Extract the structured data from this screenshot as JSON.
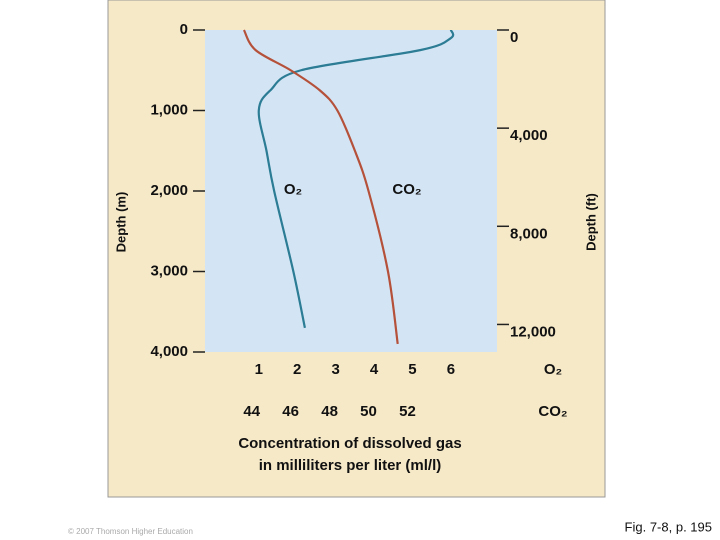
{
  "chart_data": {
    "type": "line",
    "y_label": "Depth (m)",
    "y2_label": "Depth (ft)",
    "x_label": [
      "Concentration of dissolved gas",
      "in milliliters per liter (ml/l)"
    ],
    "ylim": [
      0,
      4000
    ],
    "yticks": [
      0,
      {
        "value": 1000,
        "label": "1,000"
      },
      {
        "value": 2000,
        "label": "2,000"
      },
      {
        "value": 3000,
        "label": "3,000"
      },
      {
        "value": 4000,
        "label": "4,000"
      }
    ],
    "y2lim": [
      0,
      13123
    ],
    "y2ticks": [
      0,
      {
        "value": 4000,
        "label": "4,000"
      },
      {
        "value": 8000,
        "label": "8,000"
      },
      {
        "value": 12000,
        "label": "12,000"
      }
    ],
    "series": [
      {
        "name": "O₂",
        "color": "#2b7c94",
        "xlim": [
          -0.4,
          7.2
        ],
        "xticks": [
          1,
          2,
          3,
          4,
          5,
          6
        ],
        "depths": [
          0,
          100,
          250,
          500,
          750,
          1000,
          1500,
          2000,
          3000,
          3700
        ],
        "values": [
          6.0,
          6.0,
          5.2,
          2.1,
          1.3,
          1.0,
          1.2,
          1.4,
          1.9,
          2.2
        ]
      },
      {
        "name": "CO₂",
        "color": "#b5513a",
        "xlim": [
          41.6,
          56.6
        ],
        "xticks": [
          44,
          46,
          48,
          50,
          52
        ],
        "depths": [
          0,
          250,
          500,
          750,
          1000,
          1500,
          2000,
          3000,
          3900
        ],
        "values": [
          43.6,
          44.2,
          46.0,
          47.5,
          48.4,
          49.3,
          50.0,
          51.0,
          51.5
        ]
      }
    ],
    "source": "Fig. 7-8, p. 195",
    "copyright": "© 2007 Thomson Higher Education"
  }
}
